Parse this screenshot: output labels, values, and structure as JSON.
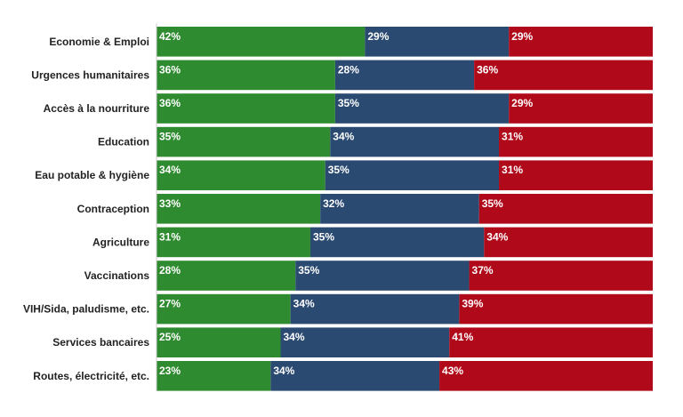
{
  "chart_data": {
    "type": "bar",
    "orientation": "horizontal",
    "stacked": true,
    "percent_stacked": true,
    "categories": [
      "Economie & Emploi",
      "Urgences humanitaires",
      "Accès à la nourriture",
      "Education",
      "Eau potable & hygiène",
      "Contraception",
      "Agriculture",
      "Vaccinations",
      "VIH/Sida, paludisme, etc.",
      "Services bancaires",
      "Routes, électricité, etc."
    ],
    "series": [
      {
        "color": "#2f8b2f",
        "values": [
          42,
          36,
          36,
          35,
          34,
          33,
          31,
          28,
          27,
          25,
          23
        ]
      },
      {
        "color": "#2b4a72",
        "values": [
          29,
          28,
          35,
          34,
          35,
          32,
          35,
          35,
          34,
          34,
          34
        ]
      },
      {
        "color": "#b0091a",
        "values": [
          29,
          36,
          29,
          31,
          31,
          35,
          34,
          37,
          39,
          41,
          43
        ]
      }
    ],
    "value_suffix": "%",
    "xlim": [
      0,
      100
    ],
    "grid": false,
    "legend": "none"
  }
}
